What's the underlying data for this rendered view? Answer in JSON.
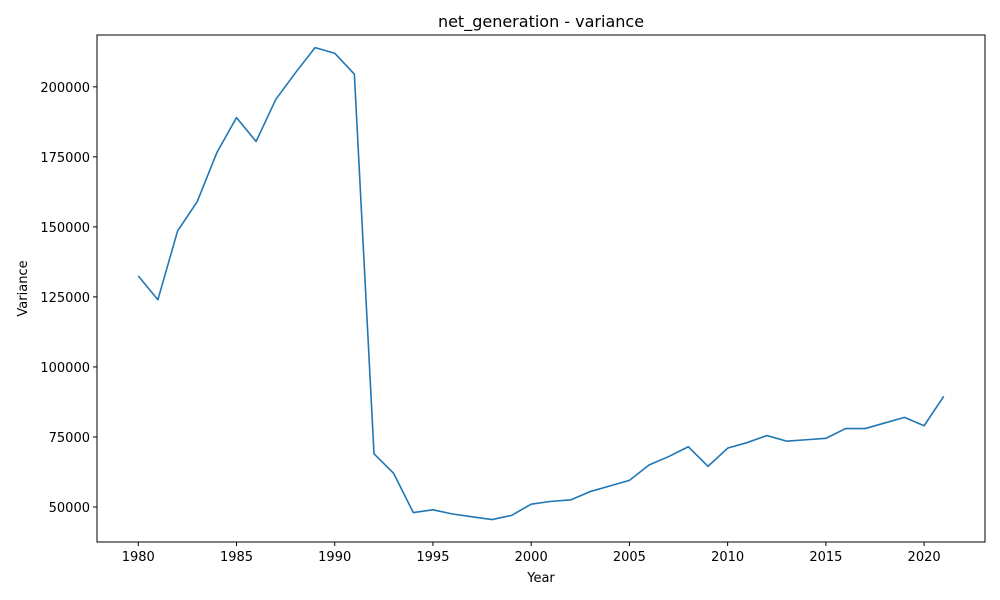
{
  "chart_data": {
    "type": "line",
    "title": "net_generation - variance",
    "xlabel": "Year",
    "ylabel": "Variance",
    "xlim": [
      1977.9,
      2023.1
    ],
    "ylim": [
      37500,
      218500
    ],
    "xticks": [
      1980,
      1985,
      1990,
      1995,
      2000,
      2005,
      2010,
      2015,
      2020
    ],
    "yticks": [
      50000,
      75000,
      100000,
      125000,
      150000,
      175000,
      200000
    ],
    "grid": false,
    "series": [
      {
        "color": "#1f77b4",
        "x": [
          1980,
          1981,
          1982,
          1983,
          1984,
          1985,
          1986,
          1987,
          1988,
          1989,
          1990,
          1991,
          1992,
          1993,
          1994,
          1995,
          1996,
          1997,
          1998,
          1999,
          2000,
          2001,
          2002,
          2003,
          2004,
          2005,
          2006,
          2007,
          2008,
          2009,
          2010,
          2011,
          2012,
          2013,
          2014,
          2015,
          2016,
          2017,
          2018,
          2019,
          2020,
          2021
        ],
        "y": [
          132500,
          124000,
          148500,
          159000,
          176500,
          189000,
          180500,
          195500,
          205000,
          214000,
          212000,
          204500,
          69000,
          62000,
          48000,
          49000,
          47500,
          46500,
          45500,
          47000,
          51000,
          52000,
          52500,
          55500,
          57500,
          59500,
          65000,
          68000,
          71500,
          64500,
          71000,
          73000,
          75500,
          73500,
          74000,
          74500,
          78000,
          78000,
          80000,
          82000,
          79000,
          89500
        ]
      }
    ]
  }
}
